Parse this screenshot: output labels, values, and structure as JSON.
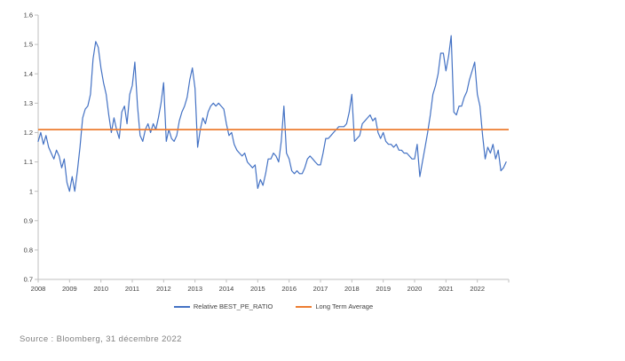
{
  "chart_data": {
    "type": "line",
    "title": "",
    "xlabel": "",
    "ylabel": "",
    "ylim": [
      0.7,
      1.6
    ],
    "y_tick_step": 0.1,
    "y_tick_labels": [
      "1.6",
      "1.5",
      "1.4",
      "1.3",
      "1.2",
      "1.1",
      "1",
      "0.9",
      "0.8",
      "0.7"
    ],
    "x_tick_labels": [
      "2008",
      "2009",
      "2010",
      "2011",
      "2012",
      "2013",
      "2014",
      "2015",
      "2016",
      "2017",
      "2018",
      "2019",
      "2020",
      "2021",
      "2022"
    ],
    "x_start": "2008-01",
    "x_end": "2022-12",
    "frequency": "monthly",
    "grid": false,
    "legend_position": "bottom",
    "axis_color": "#bfbfbf",
    "tick_label_color": "#404040",
    "series": [
      {
        "name": "Relative BEST_PE_RATIO",
        "type": "line",
        "color": "#4472c4",
        "values": [
          1.17,
          1.2,
          1.16,
          1.19,
          1.15,
          1.13,
          1.11,
          1.14,
          1.12,
          1.08,
          1.11,
          1.03,
          1.0,
          1.05,
          1.0,
          1.07,
          1.15,
          1.25,
          1.28,
          1.29,
          1.33,
          1.45,
          1.51,
          1.49,
          1.42,
          1.37,
          1.33,
          1.26,
          1.2,
          1.25,
          1.21,
          1.18,
          1.27,
          1.29,
          1.23,
          1.33,
          1.36,
          1.44,
          1.29,
          1.19,
          1.17,
          1.21,
          1.23,
          1.2,
          1.23,
          1.21,
          1.25,
          1.3,
          1.37,
          1.17,
          1.21,
          1.18,
          1.17,
          1.19,
          1.24,
          1.27,
          1.29,
          1.32,
          1.38,
          1.42,
          1.35,
          1.15,
          1.21,
          1.25,
          1.23,
          1.27,
          1.29,
          1.3,
          1.29,
          1.3,
          1.29,
          1.28,
          1.23,
          1.19,
          1.2,
          1.16,
          1.14,
          1.13,
          1.12,
          1.13,
          1.1,
          1.09,
          1.08,
          1.09,
          1.01,
          1.04,
          1.02,
          1.06,
          1.11,
          1.11,
          1.13,
          1.12,
          1.1,
          1.17,
          1.29,
          1.13,
          1.11,
          1.07,
          1.06,
          1.07,
          1.06,
          1.06,
          1.08,
          1.11,
          1.12,
          1.11,
          1.1,
          1.09,
          1.09,
          1.13,
          1.18,
          1.18,
          1.19,
          1.2,
          1.21,
          1.22,
          1.22,
          1.22,
          1.23,
          1.27,
          1.33,
          1.17,
          1.18,
          1.19,
          1.23,
          1.24,
          1.25,
          1.26,
          1.24,
          1.25,
          1.2,
          1.18,
          1.2,
          1.17,
          1.16,
          1.16,
          1.15,
          1.16,
          1.14,
          1.14,
          1.13,
          1.13,
          1.12,
          1.11,
          1.11,
          1.16,
          1.05,
          1.1,
          1.15,
          1.2,
          1.26,
          1.33,
          1.36,
          1.4,
          1.47,
          1.47,
          1.41,
          1.46,
          1.53,
          1.27,
          1.26,
          1.29,
          1.29,
          1.32,
          1.34,
          1.38,
          1.41,
          1.44,
          1.33,
          1.29,
          1.19,
          1.11,
          1.15,
          1.13,
          1.16,
          1.11,
          1.14,
          1.07,
          1.08,
          1.1
        ]
      },
      {
        "name": "Long Term Average",
        "type": "hline",
        "color": "#ed7d31",
        "value": 1.21
      }
    ]
  },
  "source_note": "Source : Bloomberg, 31 décembre 2022"
}
